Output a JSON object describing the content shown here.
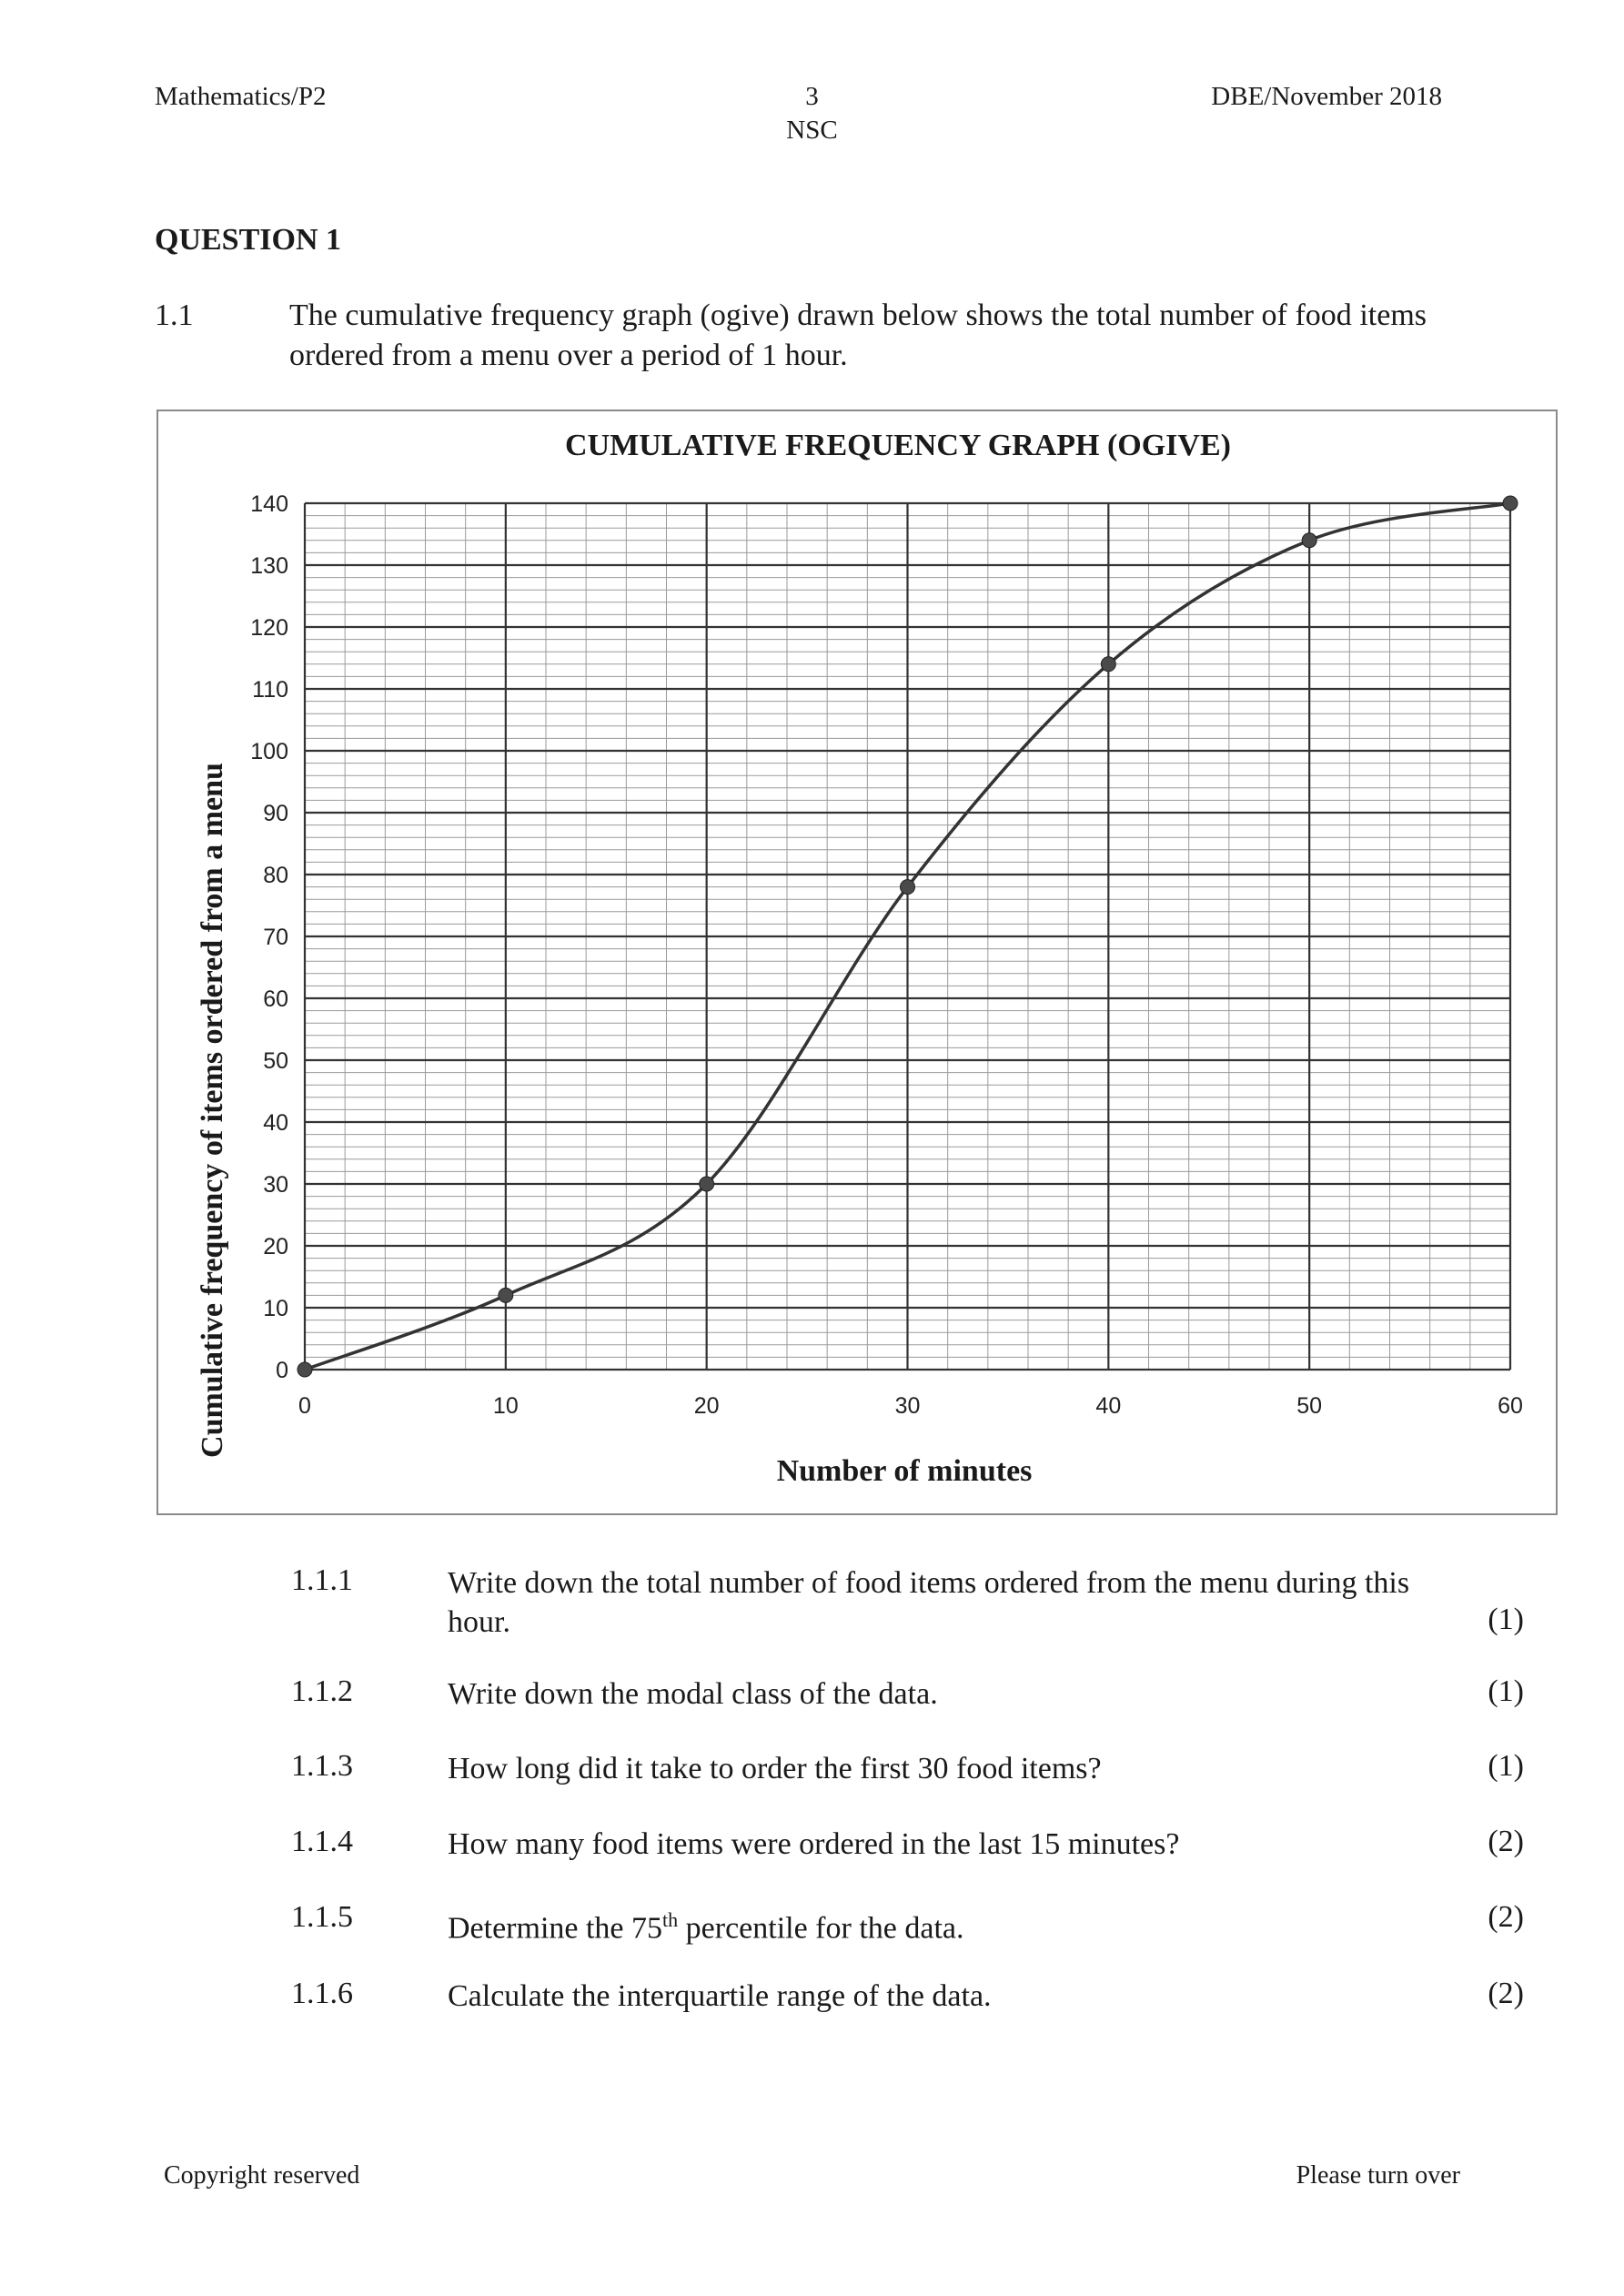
{
  "header": {
    "left": "Mathematics/P2",
    "page": "3",
    "sub": "NSC",
    "right": "DBE/November 2018"
  },
  "question": {
    "title": "QUESTION 1",
    "number": "1.1",
    "text": "The cumulative frequency graph (ogive) drawn below shows the total number of food items ordered from a menu over a period of 1 hour."
  },
  "chart_data": {
    "type": "line",
    "title": "CUMULATIVE FREQUENCY GRAPH (OGIVE)",
    "xlabel": "Number of minutes",
    "ylabel": "Cumulative frequency of items ordered from a menu",
    "xlim": [
      0,
      60
    ],
    "ylim": [
      0,
      140
    ],
    "x_ticks": [
      "0",
      "10",
      "20",
      "30",
      "40",
      "50",
      "60"
    ],
    "y_ticks": [
      "0",
      "10",
      "20",
      "30",
      "40",
      "50",
      "60",
      "70",
      "80",
      "90",
      "100",
      "110",
      "120",
      "130",
      "140"
    ],
    "grid": true,
    "series": [
      {
        "x": [
          0,
          10,
          20,
          30,
          40,
          50,
          60
        ],
        "y": [
          0,
          12,
          30,
          78,
          114,
          134,
          140
        ]
      }
    ]
  },
  "subquestions": [
    {
      "num": "1.1.1",
      "text": "Write down the total number of food items ordered from the menu during this hour.",
      "marks": "(1)"
    },
    {
      "num": "1.1.2",
      "text": "Write down the modal class of the data.",
      "marks": "(1)"
    },
    {
      "num": "1.1.3",
      "text": "How long did it take to order the first 30 food items?",
      "marks": "(1)"
    },
    {
      "num": "1.1.4",
      "text": "How many food items were ordered in the last 15 minutes?",
      "marks": "(2)"
    },
    {
      "num": "1.1.5",
      "text_before": "Determine the 75",
      "sup": "th",
      "text_after": " percentile for the data.",
      "marks": "(2)"
    },
    {
      "num": "1.1.6",
      "text": "Calculate the interquartile range of the data.",
      "marks": "(2)"
    }
  ],
  "footer": {
    "left": "Copyright reserved",
    "right": "Please turn over"
  }
}
